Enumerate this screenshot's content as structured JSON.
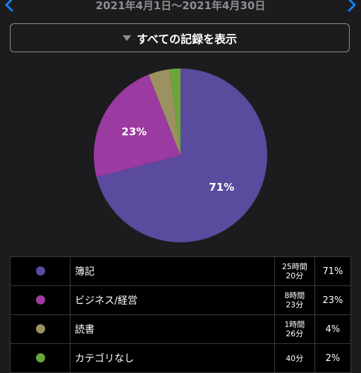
{
  "header": {
    "date_range": "2021年4月1日～2021年4月30日",
    "prev_icon": "chevron-left-icon",
    "next_icon": "chevron-right-icon",
    "accent_color": "#0a84ff"
  },
  "filter": {
    "label": "すべての記録を表示",
    "icon": "triangle-down-icon"
  },
  "chart_data": {
    "type": "pie",
    "slices": [
      {
        "name": "簿記",
        "value": 71,
        "color": "#5a4b9e",
        "label": "71%"
      },
      {
        "name": "ビジネス/経営",
        "value": 23,
        "color": "#9b3aa0",
        "label": "23%"
      },
      {
        "name": "読書",
        "value": 4,
        "color": "#9c9160",
        "label": ""
      },
      {
        "name": "カテゴリなし",
        "value": 2,
        "color": "#6aa63a",
        "label": ""
      }
    ]
  },
  "legend": {
    "rows": [
      {
        "color": "#5a4b9e",
        "name": "簿記",
        "time_line1": "25時間",
        "time_line2": "20分",
        "percent": "71%"
      },
      {
        "color": "#9b3aa0",
        "name": "ビジネス/経営",
        "time_line1": "8時間",
        "time_line2": "23分",
        "percent": "23%"
      },
      {
        "color": "#9c9160",
        "name": "読書",
        "time_line1": "1時間",
        "time_line2": "26分",
        "percent": "4%"
      },
      {
        "color": "#6aa63a",
        "name": "カテゴリなし",
        "time_line1": "40分",
        "time_line2": "",
        "percent": "2%"
      }
    ]
  }
}
